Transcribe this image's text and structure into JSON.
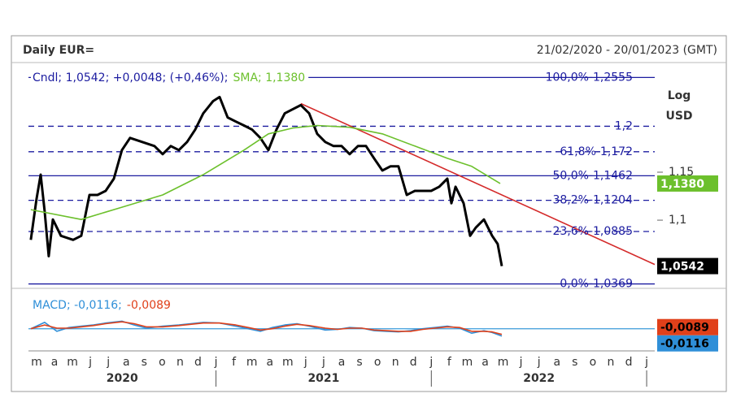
{
  "chart_data": [
    {
      "type": "line",
      "title": "Daily EUR=",
      "subtitle": "21/02/2020 - 20/01/2023 (GMT)",
      "log": true,
      "axis_label": [
        "Log",
        "USD"
      ],
      "xlim": [
        -0.45,
        34.45
      ],
      "ylim": [
        1.035,
        1.272
      ],
      "yticks": [
        {
          "value": 1.15,
          "label": "1,15"
        },
        {
          "value": 1.1,
          "label": "1,1"
        }
      ],
      "series": [
        {
          "legend": "Cndl; 1,0542; +0,0048; (+0,46%);",
          "color": "#000000",
          "badge_text": "#ffffff",
          "x": [
            -0.32,
            0,
            0.23,
            0.45,
            0.68,
            0.91,
            1.36,
            2.04,
            2.49,
            2.95,
            3.4,
            3.85,
            4.31,
            4.76,
            5.21,
            5.89,
            6.57,
            7.03,
            7.48,
            7.93,
            8.39,
            8.84,
            9.29,
            9.84,
            10.2,
            10.65,
            11.11,
            11.56,
            12.01,
            12.47,
            12.92,
            13.37,
            13.83,
            14.28,
            14.73,
            15.19,
            15.64,
            16.09,
            16.55,
            17,
            17.45,
            17.91,
            18.36,
            18.81,
            19.27,
            19.72,
            20.17,
            20.63,
            21.08,
            21.53,
            21.99,
            22.44,
            22.89,
            23.12,
            23.35,
            23.8,
            24.16,
            24.48,
            24.93,
            25.39,
            25.7,
            25.93
          ],
          "values": [
            1.0801,
            1.1217,
            1.1474,
            1.1091,
            1.0639,
            1.1007,
            1.0842,
            1.0801,
            1.0842,
            1.126,
            1.126,
            1.1303,
            1.1431,
            1.1738,
            1.1871,
            1.1826,
            1.1782,
            1.1694,
            1.1782,
            1.1738,
            1.1826,
            1.1962,
            1.2144,
            1.2283,
            1.233,
            1.2098,
            1.2052,
            1.2008,
            1.1962,
            1.1871,
            1.1738,
            1.1962,
            1.2144,
            1.2191,
            1.2237,
            1.2144,
            1.1916,
            1.1826,
            1.1782,
            1.1782,
            1.1694,
            1.1782,
            1.1782,
            1.1649,
            1.1518,
            1.1562,
            1.1562,
            1.126,
            1.1303,
            1.1303,
            1.1303,
            1.1346,
            1.1431,
            1.1174,
            1.1346,
            1.1174,
            1.0842,
            1.0925,
            1.1007,
            1.0842,
            1.076,
            1.0542
          ],
          "last": {
            "value": 1.0542,
            "label": "1,0542"
          }
        },
        {
          "legend": "SMA; 1,1380",
          "color": "#6cc02c",
          "badge_text": "#ffffff",
          "x": [
            -0.32,
            2.49,
            4.76,
            7.03,
            9.29,
            11.56,
            12.92,
            14.28,
            15.64,
            17.45,
            19.27,
            21.08,
            22.89,
            24.25,
            25.84
          ],
          "values": [
            1.1108,
            1.1007,
            1.1133,
            1.126,
            1.1474,
            1.1738,
            1.1916,
            1.198,
            1.2008,
            1.1989,
            1.1916,
            1.1782,
            1.1649,
            1.1562,
            1.138
          ],
          "last": {
            "value": 1.138,
            "label": "1,1380"
          }
        }
      ],
      "trendline": {
        "color": "#d42a2a",
        "x": [
          14.73,
          34.45
        ],
        "values": [
          1.2255,
          1.0558
        ]
      },
      "level_color": "#1c1ca0",
      "levels": [
        {
          "value": 1.2555,
          "label": "100,0%-1,2555",
          "style": "solid"
        },
        {
          "value": 1.2,
          "label": "1,2",
          "style": "dashed"
        },
        {
          "value": 1.172,
          "label": "61,8%-1,172",
          "style": "dashed"
        },
        {
          "value": 1.1462,
          "label": "50,0%-1,1462",
          "style": "solid"
        },
        {
          "value": 1.1204,
          "label": "38,2%-1,1204",
          "style": "dashed"
        },
        {
          "value": 1.0885,
          "label": "23,6%-1,0885",
          "style": "dashed"
        },
        {
          "value": 1.0369,
          "label": "0,0%-1,0369",
          "style": "solid"
        }
      ]
    },
    {
      "type": "line",
      "xlim": [
        -0.45,
        34.45
      ],
      "ylim": [
        -0.035,
        0.06
      ],
      "reference_line": 0,
      "reference_color": "#3a9ad9",
      "series": [
        {
          "legend": "MACD; -0,0116;",
          "color": "#2f8fd8",
          "badge_text": "#000000",
          "x": [
            -0.32,
            0.45,
            1.13,
            1.81,
            2.49,
            3.17,
            3.85,
            4.76,
            5.44,
            6.12,
            7.03,
            7.93,
            9.29,
            10.2,
            11.11,
            11.79,
            12.47,
            13.15,
            13.83,
            14.51,
            15.19,
            16.09,
            16.77,
            17.45,
            18.13,
            18.81,
            19.49,
            20.17,
            20.85,
            21.53,
            22.21,
            22.89,
            23.57,
            24.25,
            24.93,
            25.39,
            25.93
          ],
          "values": [
            0,
            0.01,
            -0.004,
            0.002,
            0.004,
            0.006,
            0.009,
            0.012,
            0.006,
            0.001,
            0.004,
            0.006,
            0.01,
            0.009,
            0.004,
            0,
            -0.004,
            0.002,
            0.006,
            0.008,
            0.004,
            -0.002,
            -0.001,
            0.002,
            0.001,
            -0.003,
            -0.004,
            -0.005,
            -0.003,
            0,
            0.002,
            0.004,
            0.001,
            -0.007,
            -0.003,
            -0.006,
            -0.0116
          ],
          "last": {
            "value": -0.0116,
            "label": "-0,0116"
          }
        },
        {
          "legend": "-0,0089",
          "color": "#e0401a",
          "badge_text": "#000000",
          "x": [
            -0.32,
            0.45,
            1.13,
            1.81,
            2.49,
            3.17,
            3.85,
            4.76,
            5.44,
            6.12,
            7.03,
            7.93,
            9.29,
            10.2,
            11.11,
            11.79,
            12.47,
            13.15,
            13.83,
            14.51,
            15.19,
            16.09,
            16.77,
            17.45,
            18.13,
            18.81,
            19.49,
            20.17,
            20.85,
            21.53,
            22.21,
            22.89,
            23.57,
            24.25,
            24.93,
            25.39,
            25.93
          ],
          "values": [
            0,
            0.006,
            0.001,
            0.001,
            0.003,
            0.005,
            0.008,
            0.011,
            0.008,
            0.003,
            0.003,
            0.005,
            0.009,
            0.009,
            0.006,
            0.002,
            -0.002,
            0,
            0.004,
            0.007,
            0.005,
            0.001,
            -0.001,
            0.001,
            0.001,
            -0.002,
            -0.003,
            -0.004,
            -0.004,
            -0.001,
            0.001,
            0.003,
            0.002,
            -0.004,
            -0.004,
            -0.005,
            -0.0089
          ],
          "last": {
            "value": -0.0089,
            "label": "-0,0089"
          }
        }
      ],
      "xticks": [
        {
          "value": 0,
          "label": "m"
        },
        {
          "value": 1,
          "label": "a"
        },
        {
          "value": 2,
          "label": "m"
        },
        {
          "value": 3,
          "label": "j"
        },
        {
          "value": 4,
          "label": "j"
        },
        {
          "value": 5,
          "label": "a"
        },
        {
          "value": 6,
          "label": "s"
        },
        {
          "value": 7,
          "label": "o"
        },
        {
          "value": 8,
          "label": "n"
        },
        {
          "value": 9,
          "label": "d"
        },
        {
          "value": 10,
          "label": "j"
        },
        {
          "value": 11,
          "label": "f"
        },
        {
          "value": 12,
          "label": "m"
        },
        {
          "value": 13,
          "label": "a"
        },
        {
          "value": 14,
          "label": "m"
        },
        {
          "value": 15,
          "label": "j"
        },
        {
          "value": 16,
          "label": "j"
        },
        {
          "value": 17,
          "label": "a"
        },
        {
          "value": 18,
          "label": "s"
        },
        {
          "value": 19,
          "label": "o"
        },
        {
          "value": 20,
          "label": "n"
        },
        {
          "value": 21,
          "label": "d"
        },
        {
          "value": 22,
          "label": "j"
        },
        {
          "value": 23,
          "label": "f"
        },
        {
          "value": 24,
          "label": "m"
        },
        {
          "value": 25,
          "label": "a"
        },
        {
          "value": 26,
          "label": "m"
        },
        {
          "value": 27,
          "label": "j"
        },
        {
          "value": 28,
          "label": "j"
        },
        {
          "value": 29,
          "label": "a"
        },
        {
          "value": 30,
          "label": "s"
        },
        {
          "value": 31,
          "label": "o"
        },
        {
          "value": 32,
          "label": "n"
        },
        {
          "value": 33,
          "label": "d"
        },
        {
          "value": 34,
          "label": "j"
        }
      ],
      "year_ticks": [
        10,
        22,
        34
      ],
      "years": [
        "2020",
        "2021",
        "2022"
      ]
    }
  ]
}
